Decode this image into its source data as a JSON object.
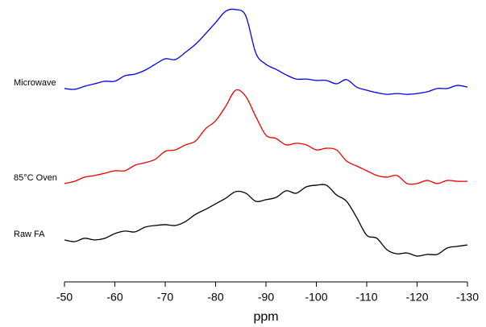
{
  "chart_data": {
    "type": "line",
    "xlabel": "ppm",
    "xlim": [
      -50,
      -130
    ],
    "xticks": [
      -50,
      -60,
      -70,
      -80,
      -90,
      -100,
      -110,
      -120,
      -130
    ],
    "ylim": [
      0,
      100
    ],
    "x": [
      -50,
      -52,
      -54,
      -56,
      -58,
      -60,
      -62,
      -64,
      -66,
      -68,
      -70,
      -72,
      -74,
      -76,
      -78,
      -80,
      -82,
      -84,
      -86,
      -88,
      -90,
      -92,
      -94,
      -96,
      -98,
      -100,
      -102,
      -104,
      -106,
      -108,
      -110,
      -112,
      -114,
      -116,
      -118,
      -120,
      -122,
      -124,
      -126,
      -128,
      -130
    ],
    "series": [
      {
        "name": "Microwave",
        "color": "#0000ee",
        "values": [
          69.6,
          69.3,
          70.4,
          71.3,
          72.2,
          72.2,
          74.2,
          74.8,
          76.2,
          78.3,
          80.3,
          80.0,
          82.6,
          85.5,
          89.3,
          93.3,
          97.4,
          98.0,
          95.7,
          82.3,
          78.3,
          76.5,
          74.5,
          73.0,
          73.0,
          72.5,
          72.5,
          71.3,
          72.8,
          70.1,
          69.0,
          68.1,
          67.5,
          67.8,
          67.5,
          67.8,
          68.4,
          69.6,
          69.6,
          70.7,
          70.1
        ]
      },
      {
        "name": "85°C Oven",
        "color": "#ee0000",
        "values": [
          35.4,
          36.2,
          37.7,
          38.3,
          39.1,
          40.0,
          40.0,
          42.0,
          42.9,
          44.1,
          47.0,
          47.5,
          49.3,
          50.7,
          55.1,
          58.0,
          63.2,
          69.0,
          66.7,
          59.4,
          52.8,
          51.6,
          49.3,
          49.9,
          49.3,
          47.5,
          48.1,
          47.5,
          43.5,
          41.7,
          40.0,
          38.3,
          37.7,
          38.3,
          35.4,
          35.4,
          36.5,
          35.4,
          36.5,
          36.2,
          36.2
        ]
      },
      {
        "name": "Raw FA",
        "color": "#000000",
        "values": [
          15.1,
          14.5,
          15.7,
          15.1,
          15.7,
          17.4,
          18.3,
          18.0,
          19.7,
          20.3,
          20.6,
          20.3,
          21.7,
          24.3,
          26.1,
          28.1,
          30.1,
          32.5,
          31.9,
          29.0,
          29.6,
          30.4,
          32.8,
          31.9,
          34.2,
          34.8,
          34.8,
          31.3,
          29.0,
          23.2,
          16.8,
          15.7,
          11.6,
          10.1,
          10.4,
          9.3,
          9.9,
          9.9,
          12.2,
          12.8,
          13.3
        ]
      }
    ]
  }
}
